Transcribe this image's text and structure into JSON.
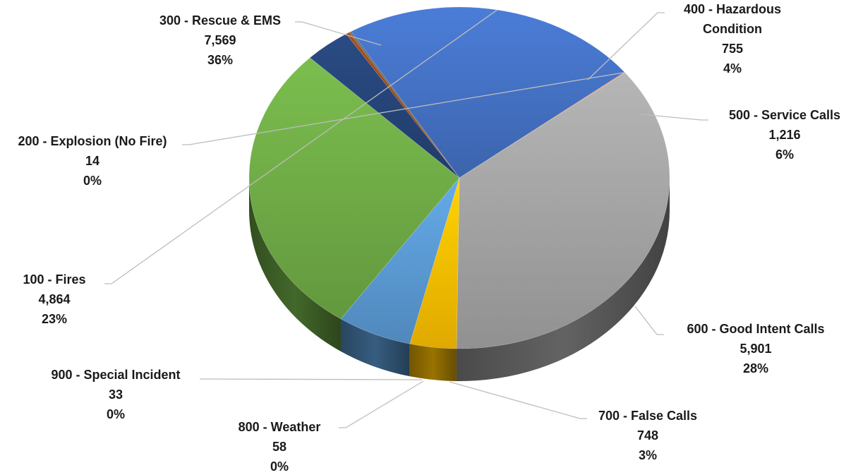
{
  "chart_data": {
    "type": "pie",
    "style": "3d",
    "title": "",
    "slices": [
      {
        "label": "100 - Fires",
        "value": 4864,
        "percent": "23%",
        "value_label": "4,864",
        "color": "#4472C4"
      },
      {
        "label": "200 - Explosion (No Fire)",
        "value": 14,
        "percent": "0%",
        "value_label": "14",
        "color": "#ED7D31"
      },
      {
        "label": "300 - Rescue & EMS",
        "value": 7569,
        "percent": "36%",
        "value_label": "7,569",
        "color": "#A5A5A5"
      },
      {
        "label": "400 - Hazardous Condition",
        "value": 755,
        "percent": "4%",
        "value_label": "755",
        "color": "#FFC000"
      },
      {
        "label": "500 - Service Calls",
        "value": 1216,
        "percent": "6%",
        "value_label": "1,216",
        "color": "#5B9BD5"
      },
      {
        "label": "600 - Good Intent Calls",
        "value": 5901,
        "percent": "28%",
        "value_label": "5,901",
        "color": "#70AD47"
      },
      {
        "label": "700 - False Calls",
        "value": 748,
        "percent": "3%",
        "value_label": "748",
        "color": "#264478"
      },
      {
        "label": "800 - Weather",
        "value": 58,
        "percent": "0%",
        "value_label": "58",
        "color": "#9E480E"
      },
      {
        "label": "900 - Special Incident",
        "value": 33,
        "percent": "0%",
        "value_label": "33",
        "color": "#636363"
      }
    ]
  }
}
